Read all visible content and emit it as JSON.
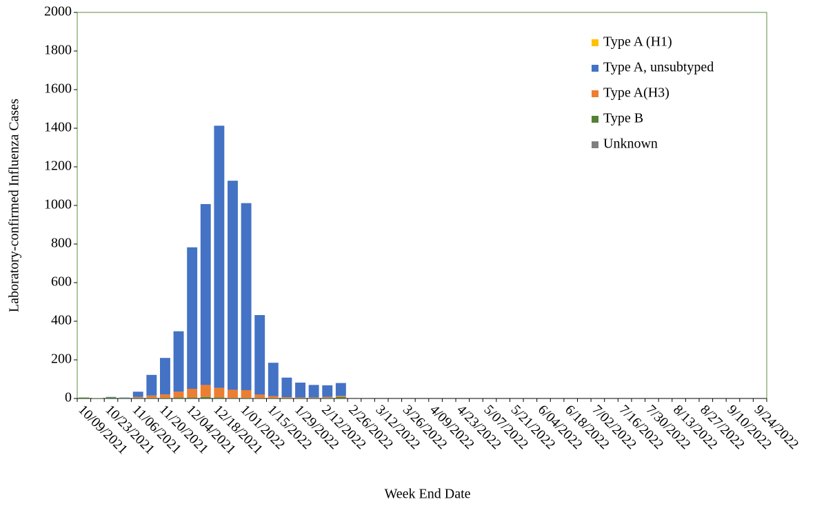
{
  "chart_data": {
    "type": "stacked_bar",
    "x_label": "Week End Date",
    "y_label": "Laboratory-confirmed Influenza Cases",
    "categories": [
      "10/09/2021",
      null,
      "10/23/2021",
      null,
      "11/06/2021",
      null,
      "11/20/2021",
      null,
      "12/04/2021",
      null,
      "12/18/2021",
      null,
      "1/01/2022",
      null,
      "1/15/2022",
      null,
      "1/29/2022",
      null,
      "2/12/2022",
      null,
      "2/26/2022",
      null,
      "3/12/2022",
      null,
      "3/26/2022",
      null,
      "4/09/2022",
      null,
      "4/23/2022",
      null,
      "5/07/2022",
      null,
      "5/21/2022",
      null,
      "6/04/2022",
      null,
      "6/18/2022",
      null,
      "7/02/2022",
      null,
      "7/16/2022",
      null,
      "7/30/2022",
      null,
      "8/13/2022",
      null,
      "8/27/2022",
      null,
      "9/10/2022",
      null,
      "9/24/2022"
    ],
    "series": [
      {
        "name": "Type A (H1)",
        "color": "#ffc000",
        "values": [
          0,
          0,
          0,
          0,
          0,
          0,
          0,
          0,
          0,
          0,
          0,
          0,
          0,
          0,
          0,
          0,
          0,
          0,
          0,
          0,
          0,
          0,
          0,
          0,
          0,
          0,
          0,
          0,
          0,
          0,
          0,
          0,
          0,
          0,
          0,
          0,
          0,
          0,
          0,
          0,
          0,
          0,
          0,
          0,
          0,
          0,
          0,
          0,
          0,
          0,
          0
        ]
      },
      {
        "name": "Type A, unsubtyped",
        "color": "#4472c4",
        "values": [
          0,
          0,
          2,
          2,
          27,
          107,
          189,
          313,
          733,
          937,
          1358,
          1083,
          969,
          412,
          173,
          101,
          77,
          65,
          60,
          67,
          0,
          0,
          0,
          0,
          0,
          0,
          0,
          0,
          0,
          0,
          0,
          0,
          0,
          0,
          0,
          0,
          0,
          0,
          0,
          0,
          0,
          0,
          0,
          0,
          0,
          0,
          0,
          0,
          0,
          0,
          0
        ]
      },
      {
        "name": "Type A(H3)",
        "color": "#ed7d31",
        "values": [
          0,
          0,
          0,
          0,
          5,
          12,
          18,
          30,
          45,
          62,
          50,
          42,
          40,
          18,
          10,
          5,
          3,
          3,
          5,
          5,
          0,
          0,
          0,
          0,
          0,
          0,
          0,
          0,
          0,
          0,
          0,
          0,
          0,
          0,
          0,
          0,
          0,
          0,
          0,
          0,
          0,
          0,
          0,
          0,
          0,
          0,
          0,
          0,
          0,
          0,
          0
        ]
      },
      {
        "name": "Type B",
        "color": "#548235",
        "values": [
          5,
          2,
          6,
          3,
          3,
          3,
          3,
          5,
          5,
          8,
          5,
          3,
          3,
          2,
          2,
          2,
          2,
          2,
          3,
          8,
          0,
          0,
          0,
          0,
          0,
          0,
          0,
          0,
          0,
          0,
          0,
          0,
          0,
          0,
          0,
          0,
          0,
          0,
          0,
          0,
          0,
          0,
          0,
          0,
          0,
          0,
          0,
          0,
          0,
          0,
          0
        ]
      },
      {
        "name": "Unknown",
        "color": "#7f7f7f",
        "values": [
          0,
          0,
          0,
          0,
          0,
          0,
          0,
          0,
          0,
          0,
          0,
          0,
          0,
          0,
          0,
          0,
          0,
          0,
          0,
          0,
          0,
          0,
          0,
          0,
          0,
          0,
          0,
          0,
          0,
          0,
          0,
          0,
          0,
          0,
          0,
          0,
          0,
          0,
          0,
          0,
          0,
          0,
          0,
          0,
          0,
          0,
          0,
          0,
          0,
          0,
          0
        ]
      }
    ],
    "ylim": [
      0,
      2000
    ],
    "yticks": [
      0,
      200,
      400,
      600,
      800,
      1000,
      1200,
      1400,
      1600,
      1800,
      2000
    ],
    "legend": "upper right"
  }
}
